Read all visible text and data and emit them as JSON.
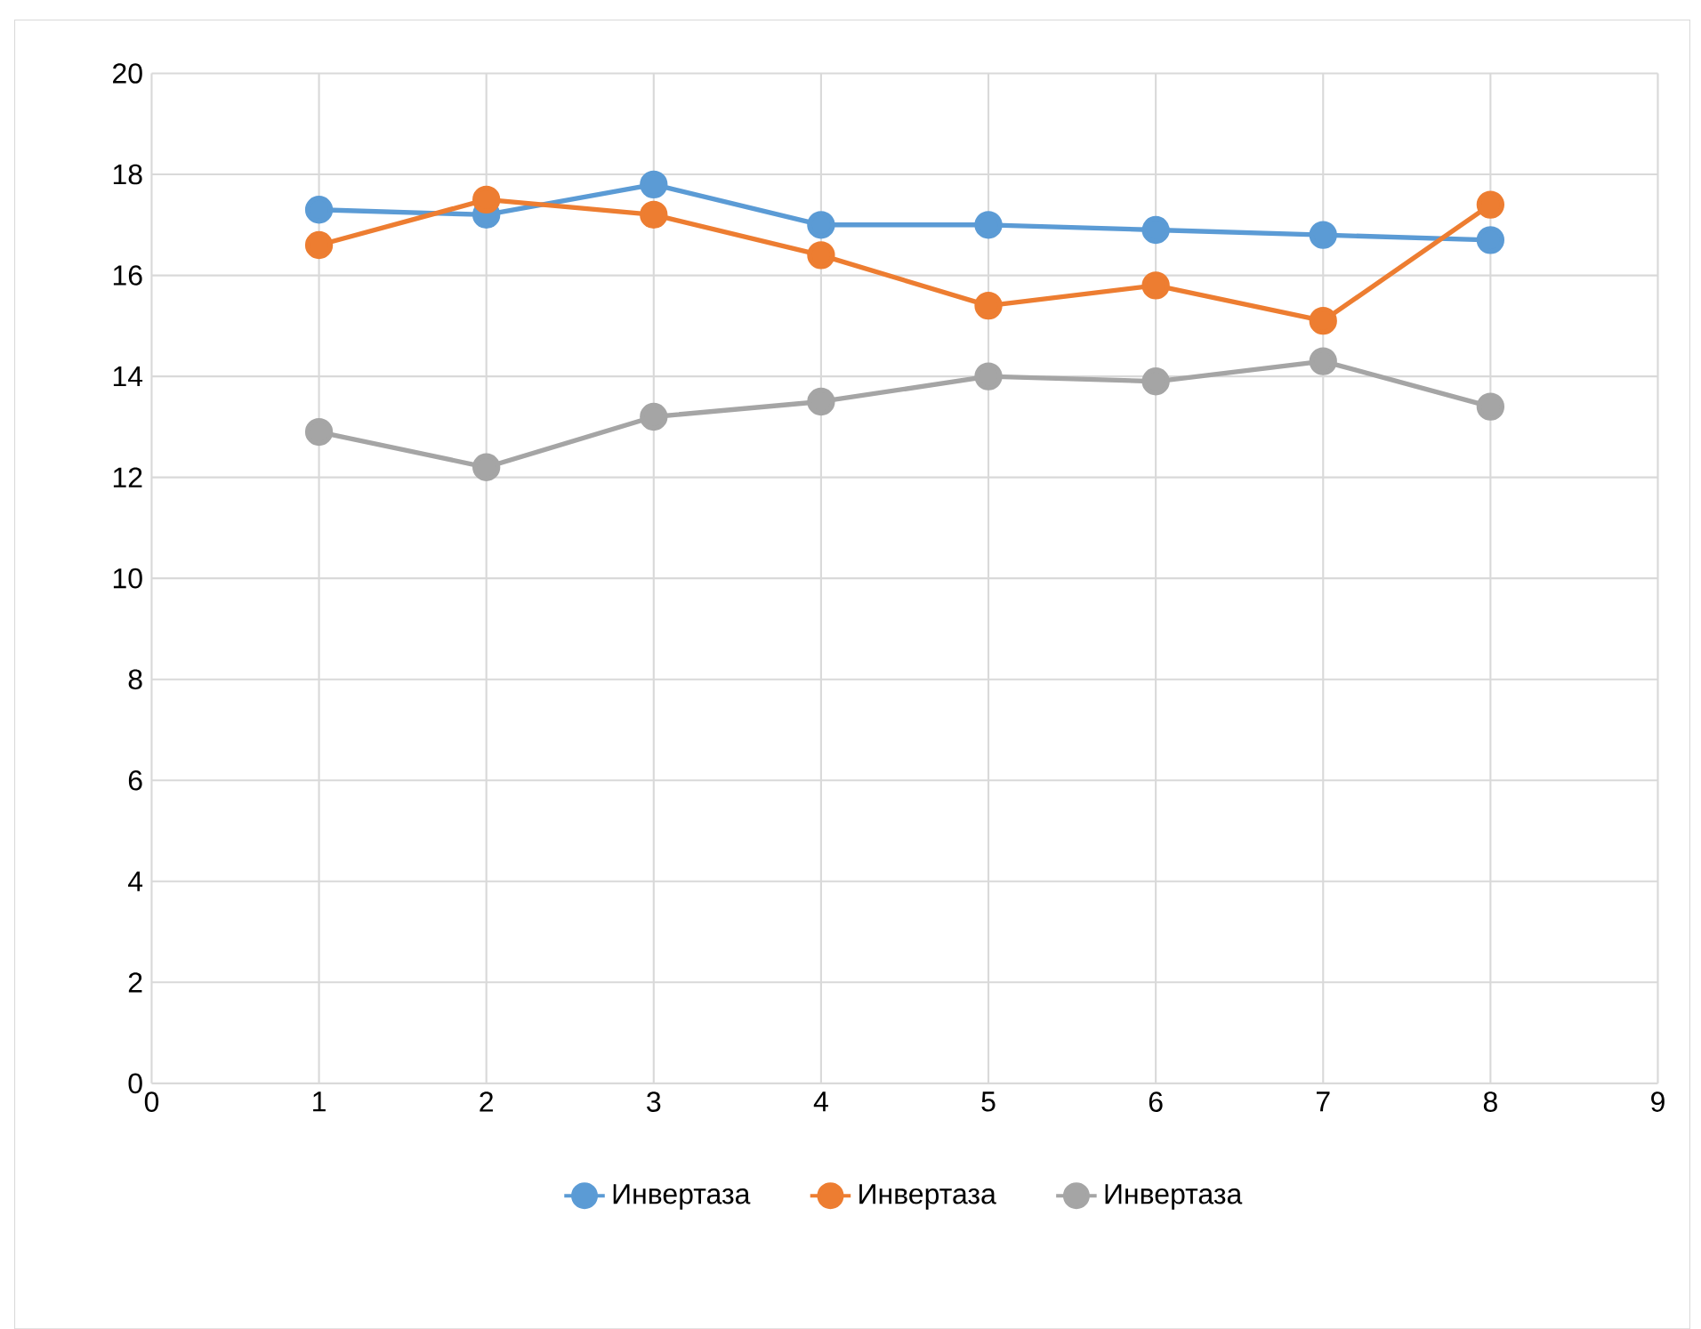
{
  "chart_data": {
    "type": "line",
    "xlim": [
      0,
      9
    ],
    "ylim": [
      0,
      20
    ],
    "xticks": [
      0,
      1,
      2,
      3,
      4,
      5,
      6,
      7,
      8,
      9
    ],
    "yticks": [
      0,
      2,
      4,
      6,
      8,
      10,
      12,
      14,
      16,
      18,
      20
    ],
    "grid": true,
    "legend": "bottom",
    "marker": "circle",
    "line_style": "solid",
    "x": [
      1,
      2,
      3,
      4,
      5,
      6,
      7,
      8
    ],
    "series": [
      {
        "name": "Инвертаза",
        "color": "#5b9bd5",
        "values": [
          17.3,
          17.2,
          17.8,
          17.0,
          17.0,
          16.9,
          16.8,
          16.7
        ]
      },
      {
        "name": "Инвертаза",
        "color": "#ed7d31",
        "values": [
          16.6,
          17.5,
          17.2,
          16.4,
          15.4,
          15.8,
          15.1,
          17.4
        ]
      },
      {
        "name": "Инвертаза",
        "color": "#a5a5a5",
        "values": [
          12.9,
          12.2,
          13.2,
          13.5,
          14.0,
          13.9,
          14.3,
          13.4
        ]
      }
    ]
  }
}
